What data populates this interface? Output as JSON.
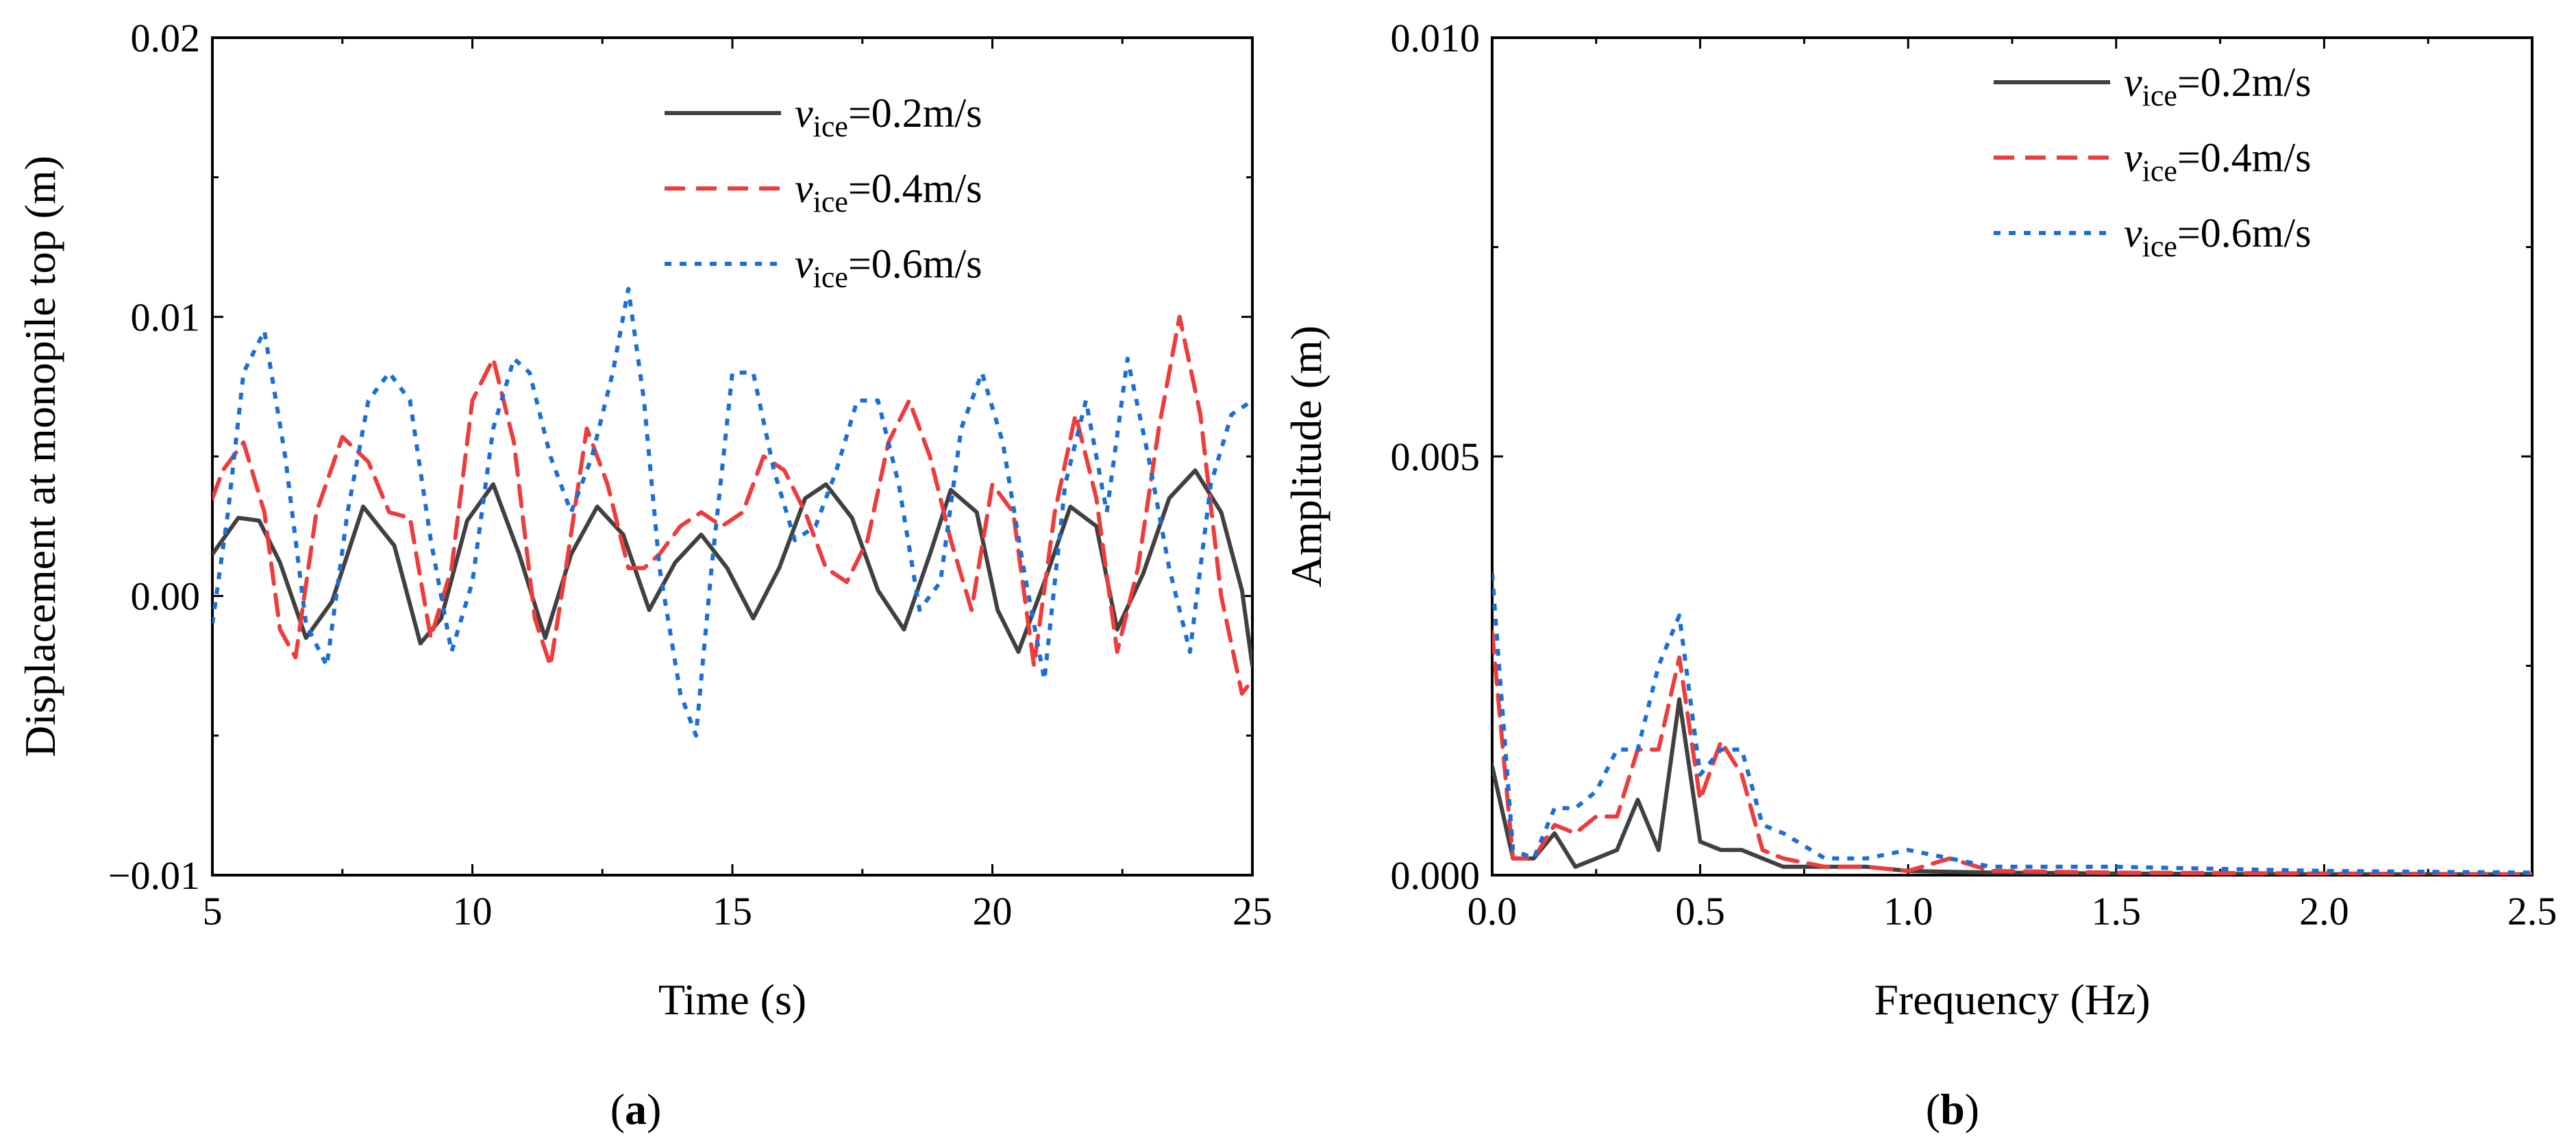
{
  "chart_data": [
    {
      "type": "line",
      "panel_label": "(a)",
      "panel_letter": "a",
      "title": "",
      "xlabel": "Time (s)",
      "ylabel": "Displacement at monopile top (m)",
      "xlim": [
        5,
        25
      ],
      "ylim": [
        -0.01,
        0.02
      ],
      "xticks": [
        5,
        10,
        15,
        20,
        25
      ],
      "xtick_labels": [
        "5",
        "10",
        "15",
        "20",
        "25"
      ],
      "yticks": [
        -0.01,
        0.0,
        0.01,
        0.02
      ],
      "ytick_labels": [
        "−0.01",
        "0.00",
        "0.01",
        "0.02"
      ],
      "legend_position": "top-right",
      "series": [
        {
          "name": "v_ice=0.2m/s",
          "legend_var": "v",
          "legend_sub": "ice",
          "legend_rest": "=0.2m/s",
          "color": "#404040",
          "dash": "solid",
          "x": [
            5.0,
            5.5,
            5.9,
            6.3,
            6.8,
            7.3,
            7.9,
            8.5,
            9.0,
            9.4,
            9.9,
            10.4,
            10.9,
            11.4,
            11.9,
            12.4,
            12.9,
            13.4,
            13.9,
            14.4,
            14.9,
            15.4,
            15.9,
            16.4,
            16.8,
            17.3,
            17.8,
            18.3,
            18.8,
            19.2,
            19.7,
            20.1,
            20.5,
            21.0,
            21.5,
            22.0,
            22.4,
            22.9,
            23.4,
            23.9,
            24.4,
            24.8,
            25.0
          ],
          "y": [
            0.0015,
            0.0028,
            0.0027,
            0.0012,
            -0.0015,
            -0.0002,
            0.0032,
            0.0018,
            -0.0017,
            -0.0008,
            0.0027,
            0.004,
            0.0015,
            -0.0015,
            0.0015,
            0.0032,
            0.0022,
            -0.0005,
            0.0012,
            0.0022,
            0.001,
            -0.0008,
            0.001,
            0.0035,
            0.004,
            0.0028,
            0.0002,
            -0.0012,
            0.0015,
            0.0038,
            0.003,
            -0.0005,
            -0.002,
            0.0005,
            0.0032,
            0.0025,
            -0.0012,
            0.0008,
            0.0035,
            0.0045,
            0.003,
            0.0002,
            -0.0025
          ]
        },
        {
          "name": "v_ice=0.4m/s",
          "legend_var": "v",
          "legend_sub": "ice",
          "legend_rest": "=0.4m/s",
          "color": "#ee3b3b",
          "dash": "long-dash",
          "x": [
            5.0,
            5.2,
            5.6,
            6.0,
            6.3,
            6.6,
            7.0,
            7.5,
            8.0,
            8.4,
            8.8,
            9.2,
            9.6,
            10.0,
            10.4,
            10.8,
            11.2,
            11.5,
            11.8,
            12.2,
            12.6,
            13.0,
            13.3,
            13.6,
            14.0,
            14.4,
            14.8,
            15.2,
            15.6,
            16.0,
            16.4,
            16.8,
            17.2,
            17.6,
            18.0,
            18.4,
            18.8,
            19.2,
            19.6,
            20.0,
            20.4,
            20.8,
            21.2,
            21.6,
            22.0,
            22.4,
            22.8,
            23.2,
            23.6,
            24.0,
            24.4,
            24.8,
            25.0
          ],
          "y": [
            0.0035,
            0.0045,
            0.0055,
            0.003,
            -0.0012,
            -0.0022,
            0.003,
            0.0057,
            0.0048,
            0.003,
            0.0028,
            -0.0015,
            0.001,
            0.007,
            0.0085,
            0.0055,
            -0.0008,
            -0.0025,
            0.001,
            0.006,
            0.004,
            0.001,
            0.001,
            0.0015,
            0.0025,
            0.003,
            0.0025,
            0.003,
            0.005,
            0.0045,
            0.003,
            0.001,
            0.0005,
            0.002,
            0.0055,
            0.007,
            0.005,
            0.002,
            -0.0005,
            0.004,
            0.003,
            -0.0025,
            0.003,
            0.0065,
            0.0035,
            -0.002,
            0.001,
            0.006,
            0.01,
            0.0065,
            0.0,
            -0.0035,
            -0.003
          ]
        },
        {
          "name": "v_ice=0.6m/s",
          "legend_var": "v",
          "legend_sub": "ice",
          "legend_rest": "=0.6m/s",
          "color": "#1a6fd6",
          "dash": "dotted",
          "x": [
            5.0,
            5.3,
            5.6,
            6.0,
            6.4,
            6.8,
            7.2,
            7.6,
            8.0,
            8.4,
            8.8,
            9.2,
            9.6,
            10.0,
            10.4,
            10.8,
            11.1,
            11.5,
            11.9,
            12.3,
            12.7,
            13.0,
            13.3,
            13.6,
            14.0,
            14.3,
            14.6,
            15.0,
            15.4,
            15.8,
            16.2,
            16.6,
            17.0,
            17.4,
            17.8,
            18.2,
            18.6,
            19.0,
            19.4,
            19.8,
            20.2,
            20.6,
            21.0,
            21.4,
            21.8,
            22.2,
            22.6,
            23.0,
            23.4,
            23.8,
            24.2,
            24.6,
            25.0
          ],
          "y": [
            -0.001,
            0.003,
            0.008,
            0.0095,
            0.005,
            -0.001,
            -0.0025,
            0.003,
            0.007,
            0.008,
            0.007,
            0.002,
            -0.002,
            0.0005,
            0.006,
            0.0085,
            0.008,
            0.005,
            0.003,
            0.005,
            0.008,
            0.011,
            0.007,
            0.001,
            -0.0035,
            -0.005,
            0.001,
            0.008,
            0.008,
            0.0045,
            0.002,
            0.0025,
            0.0045,
            0.007,
            0.007,
            0.004,
            -0.0005,
            0.0005,
            0.006,
            0.008,
            0.0055,
            0.001,
            -0.003,
            0.004,
            0.007,
            0.003,
            0.0085,
            0.005,
            0.001,
            -0.002,
            0.004,
            0.0065,
            0.007
          ]
        }
      ]
    },
    {
      "type": "line",
      "panel_label": "(b)",
      "panel_letter": "b",
      "title": "",
      "xlabel": "Frequency (Hz)",
      "ylabel": "Amplitude (m)",
      "xlim": [
        0,
        2.5
      ],
      "ylim": [
        0,
        0.01
      ],
      "xticks": [
        0.0,
        0.5,
        1.0,
        1.5,
        2.0,
        2.5
      ],
      "xtick_labels": [
        "0.0",
        "0.5",
        "1.0",
        "1.5",
        "2.0",
        "2.5"
      ],
      "yticks": [
        0.0,
        0.005,
        0.01
      ],
      "ytick_labels": [
        "0.000",
        "0.005",
        "0.010"
      ],
      "legend_position": "top-right",
      "series": [
        {
          "name": "v_ice=0.2m/s",
          "legend_var": "v",
          "legend_sub": "ice",
          "legend_rest": "=0.2m/s",
          "color": "#404040",
          "dash": "solid",
          "x": [
            0.0,
            0.05,
            0.1,
            0.15,
            0.2,
            0.25,
            0.3,
            0.35,
            0.4,
            0.45,
            0.5,
            0.55,
            0.6,
            0.65,
            0.7,
            0.8,
            0.9,
            1.0,
            1.2,
            1.5,
            2.0,
            2.5
          ],
          "y": [
            0.0013,
            0.0002,
            0.0002,
            0.0005,
            0.0001,
            0.0002,
            0.0003,
            0.0009,
            0.0003,
            0.0021,
            0.0004,
            0.0003,
            0.0003,
            0.0002,
            0.0001,
            0.0001,
            0.0001,
            5e-05,
            3e-05,
            2e-05,
            1e-05,
            1e-05
          ]
        },
        {
          "name": "v_ice=0.4m/s",
          "legend_var": "v",
          "legend_sub": "ice",
          "legend_rest": "=0.4m/s",
          "color": "#ee3b3b",
          "dash": "long-dash",
          "x": [
            0.0,
            0.05,
            0.1,
            0.15,
            0.2,
            0.25,
            0.3,
            0.35,
            0.4,
            0.45,
            0.5,
            0.55,
            0.6,
            0.65,
            0.7,
            0.8,
            0.9,
            1.0,
            1.1,
            1.2,
            1.5,
            2.0,
            2.5
          ],
          "y": [
            0.0029,
            0.0002,
            0.0002,
            0.0006,
            0.0005,
            0.0007,
            0.0007,
            0.0015,
            0.0015,
            0.0026,
            0.0009,
            0.0016,
            0.0012,
            0.0003,
            0.0002,
            0.0001,
            0.0001,
            5e-05,
            0.0002,
            5e-05,
            3e-05,
            2e-05,
            1e-05
          ]
        },
        {
          "name": "v_ice=0.6m/s",
          "legend_var": "v",
          "legend_sub": "ice",
          "legend_rest": "=0.6m/s",
          "color": "#1a6fd6",
          "dash": "dotted",
          "x": [
            0.0,
            0.05,
            0.1,
            0.15,
            0.2,
            0.25,
            0.3,
            0.35,
            0.4,
            0.45,
            0.5,
            0.55,
            0.6,
            0.65,
            0.7,
            0.8,
            0.9,
            1.0,
            1.1,
            1.2,
            1.5,
            2.0,
            2.5
          ],
          "y": [
            0.0036,
            0.0003,
            0.0002,
            0.0008,
            0.0008,
            0.001,
            0.0015,
            0.0015,
            0.0025,
            0.0031,
            0.0012,
            0.0015,
            0.0015,
            0.0006,
            0.0005,
            0.0002,
            0.0002,
            0.0003,
            0.0002,
            0.0001,
            0.0001,
            5e-05,
            3e-05
          ]
        }
      ]
    }
  ]
}
